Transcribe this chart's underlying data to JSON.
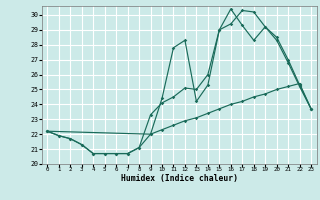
{
  "xlabel": "Humidex (Indice chaleur)",
  "bg_color": "#cceae8",
  "grid_color": "#ffffff",
  "line_color": "#1a6b5a",
  "xlim": [
    -0.5,
    23.5
  ],
  "ylim": [
    20,
    30.6
  ],
  "xticks": [
    0,
    1,
    2,
    3,
    4,
    5,
    6,
    7,
    8,
    9,
    10,
    11,
    12,
    13,
    14,
    15,
    16,
    17,
    18,
    19,
    20,
    21,
    22,
    23
  ],
  "yticks": [
    20,
    21,
    22,
    23,
    24,
    25,
    26,
    27,
    28,
    29,
    30
  ],
  "curve_bottom_x": [
    0,
    1,
    2,
    3,
    4,
    5,
    6,
    7,
    8,
    9,
    10,
    11,
    12,
    13,
    14,
    15,
    16,
    17,
    18,
    19,
    20,
    21,
    22,
    23
  ],
  "curve_bottom_y": [
    22.2,
    21.9,
    21.7,
    21.3,
    20.7,
    20.7,
    20.7,
    20.7,
    21.1,
    22.0,
    22.3,
    22.6,
    22.9,
    23.1,
    23.4,
    23.7,
    24.0,
    24.2,
    24.5,
    24.7,
    25.0,
    25.2,
    25.4,
    23.7
  ],
  "curve_mid_x": [
    0,
    1,
    2,
    3,
    4,
    5,
    6,
    7,
    8,
    9,
    10,
    11,
    12,
    13,
    14,
    15,
    16,
    17,
    18,
    19,
    20,
    21,
    22,
    23
  ],
  "curve_mid_y": [
    22.2,
    21.9,
    21.7,
    21.3,
    20.7,
    20.7,
    20.7,
    20.7,
    21.1,
    23.3,
    24.1,
    24.5,
    25.1,
    25.0,
    26.0,
    29.0,
    29.4,
    30.3,
    30.2,
    29.2,
    28.5,
    27.0,
    25.3,
    23.7
  ],
  "curve_top_x": [
    0,
    9,
    10,
    11,
    12,
    13,
    14,
    15,
    16,
    17,
    18,
    19,
    20,
    21,
    22,
    23
  ],
  "curve_top_y": [
    22.2,
    22.0,
    24.4,
    27.8,
    28.3,
    24.2,
    25.3,
    29.0,
    30.4,
    29.3,
    28.3,
    29.2,
    28.3,
    26.8,
    25.2,
    23.7
  ]
}
